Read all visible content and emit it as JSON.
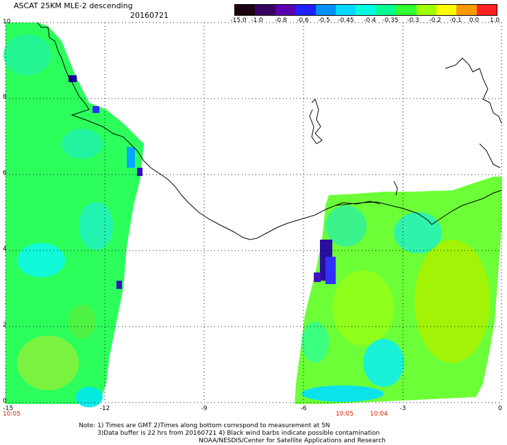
{
  "header": {
    "title": "ASCAT 25KM MLE-2 descending",
    "date": "20160721"
  },
  "colorbar": {
    "labels": [
      "-15.0",
      "-1.0",
      "-0.8",
      "-0.6",
      "-0.5",
      "-0.45",
      "-0.4",
      "-0.35",
      "-0.3",
      "-0.2",
      "-0.1",
      "0.0",
      "1.0"
    ],
    "colors": [
      "#1a0010",
      "#3a0060",
      "#5a00b0",
      "#2020ff",
      "#0090ff",
      "#00d8ff",
      "#00ffe0",
      "#00ff90",
      "#30ff30",
      "#a0ff00",
      "#ffff00",
      "#ff9900",
      "#ff2020"
    ]
  },
  "axes": {
    "x_ticks": [
      "-15",
      "-12",
      "-9",
      "-6",
      "-3",
      "0"
    ],
    "y_ticks": [
      "0",
      "2",
      "4",
      "6",
      "8",
      "10"
    ],
    "lon_range": [
      -15,
      0
    ],
    "lat_range": [
      0,
      10
    ],
    "grid": "dotted"
  },
  "time_labels": [
    "10:05",
    "10:05",
    "10:04"
  ],
  "notes": {
    "line1": "Note: 1) Times are GMT 2)Times along bottom correspond to measurement at 5N",
    "line2": "3)Data buffer is 22 hrs from 20160721 4) Black wind barbs indicate possible contamination",
    "line3": "NOAA/NESDIS/Center for Satellite Applications and Research"
  }
}
